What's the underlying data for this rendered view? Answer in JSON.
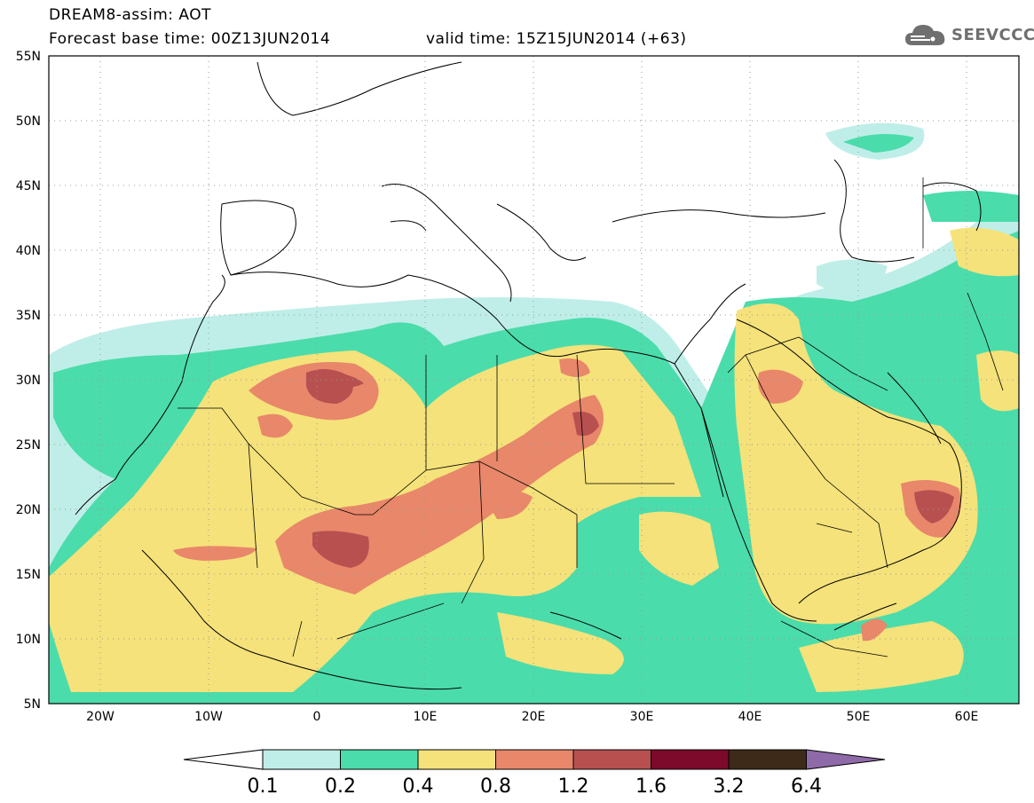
{
  "header": {
    "title": "DREAM8-assim: AOT",
    "base_time": "Forecast base time: 00Z13JUN2014",
    "valid_time": "valid time: 15Z15JUN2014 (+63)"
  },
  "logo": {
    "text": "SEEVCCC",
    "icon": "cloud-icon"
  },
  "map": {
    "lat_labels": [
      "55N",
      "50N",
      "45N",
      "40N",
      "35N",
      "30N",
      "25N",
      "20N",
      "15N",
      "10N",
      "5N"
    ],
    "lon_labels": [
      "20W",
      "10W",
      "0",
      "10E",
      "20E",
      "30E",
      "40E",
      "50E",
      "60E"
    ],
    "colors": {
      "c01": "#bfeee8",
      "c02": "#4bdcab",
      "c04": "#f5e27a",
      "c08": "#e8876a",
      "c12": "#b85050",
      "c16": "#7d0a2a",
      "c32": "#3d2a18",
      "c64": "#8f6aa8"
    }
  },
  "colorbar": {
    "labels": [
      "0.1",
      "0.2",
      "0.4",
      "0.8",
      "1.2",
      "1.6",
      "3.2",
      "6.4"
    ]
  }
}
